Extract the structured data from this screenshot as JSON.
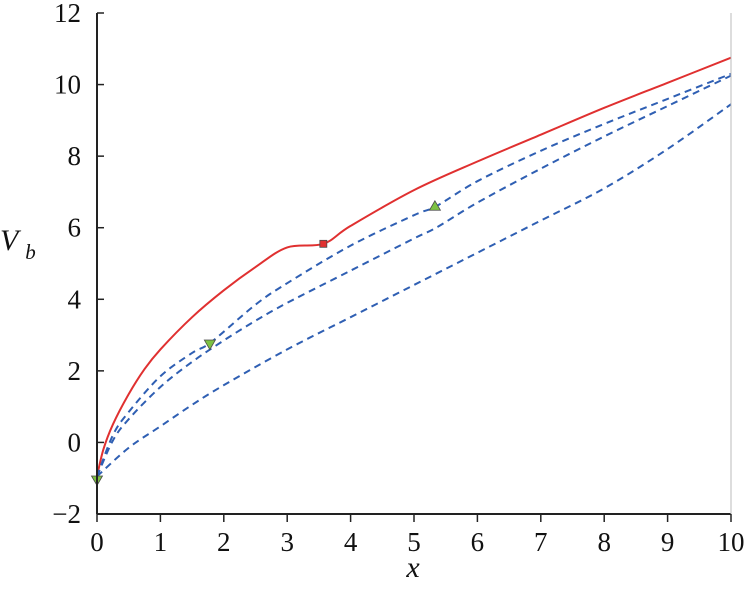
{
  "chart_data": {
    "type": "line",
    "xlabel": "x",
    "ylabel": "V",
    "ylabel_subscript": "b",
    "xlim": [
      0,
      10
    ],
    "ylim": [
      -2,
      12
    ],
    "x_ticks": [
      0,
      1,
      2,
      3,
      4,
      5,
      6,
      7,
      8,
      9,
      10
    ],
    "y_ticks": [
      -2,
      0,
      2,
      4,
      6,
      8,
      10,
      12
    ],
    "grid": false,
    "colors": {
      "solid": "#e03030",
      "dashed": "#2f5fb3",
      "marker_green": "#7cc242",
      "marker_red": "#e03030"
    },
    "series": [
      {
        "style": "solid",
        "color": "#e03030",
        "x": [
          0,
          0.1,
          0.25,
          0.5,
          0.75,
          1,
          1.5,
          2,
          2.5,
          3,
          3.57,
          4,
          5,
          6,
          7,
          8,
          9,
          10
        ],
        "y": [
          -0.95,
          -0.2,
          0.5,
          1.35,
          2.05,
          2.6,
          3.5,
          4.25,
          4.9,
          5.45,
          5.55,
          6.05,
          7.05,
          7.85,
          8.6,
          9.35,
          10.05,
          10.75
        ]
      },
      {
        "style": "dashed",
        "color": "#2f5fb3",
        "x": [
          0,
          0.25,
          0.5,
          1,
          1.5,
          1.8,
          2.5,
          3,
          4,
          5,
          5.35,
          6,
          7,
          8,
          9,
          10
        ],
        "y": [
          -0.95,
          0.2,
          0.85,
          1.85,
          2.5,
          2.8,
          3.85,
          4.45,
          5.5,
          6.35,
          6.6,
          7.3,
          8.15,
          8.9,
          9.6,
          10.3
        ]
      },
      {
        "style": "dashed",
        "color": "#2f5fb3",
        "x": [
          0,
          0.25,
          0.5,
          1,
          1.5,
          2,
          2.5,
          3,
          4,
          5,
          5.35,
          6,
          7,
          8,
          9,
          10
        ],
        "y": [
          -0.95,
          0.05,
          0.65,
          1.55,
          2.25,
          2.85,
          3.4,
          3.9,
          4.8,
          5.7,
          6.0,
          6.7,
          7.65,
          8.55,
          9.4,
          10.25
        ]
      },
      {
        "style": "dashed",
        "color": "#2f5fb3",
        "x": [
          0,
          0.5,
          1,
          1.5,
          2,
          3,
          4,
          5,
          6,
          7,
          8,
          9,
          10
        ],
        "y": [
          -0.95,
          -0.15,
          0.45,
          1.05,
          1.6,
          2.6,
          3.5,
          4.4,
          5.3,
          6.2,
          7.1,
          8.2,
          9.45
        ]
      }
    ],
    "markers": [
      {
        "shape": "triangle-down",
        "color": "#7cc242",
        "x": 0,
        "y": -1.05
      },
      {
        "shape": "triangle-down",
        "color": "#7cc242",
        "x": 1.78,
        "y": 2.75
      },
      {
        "shape": "triangle-up",
        "color": "#7cc242",
        "x": 5.33,
        "y": 6.6
      },
      {
        "shape": "square",
        "color": "#e03030",
        "x": 3.57,
        "y": 5.55
      }
    ]
  }
}
